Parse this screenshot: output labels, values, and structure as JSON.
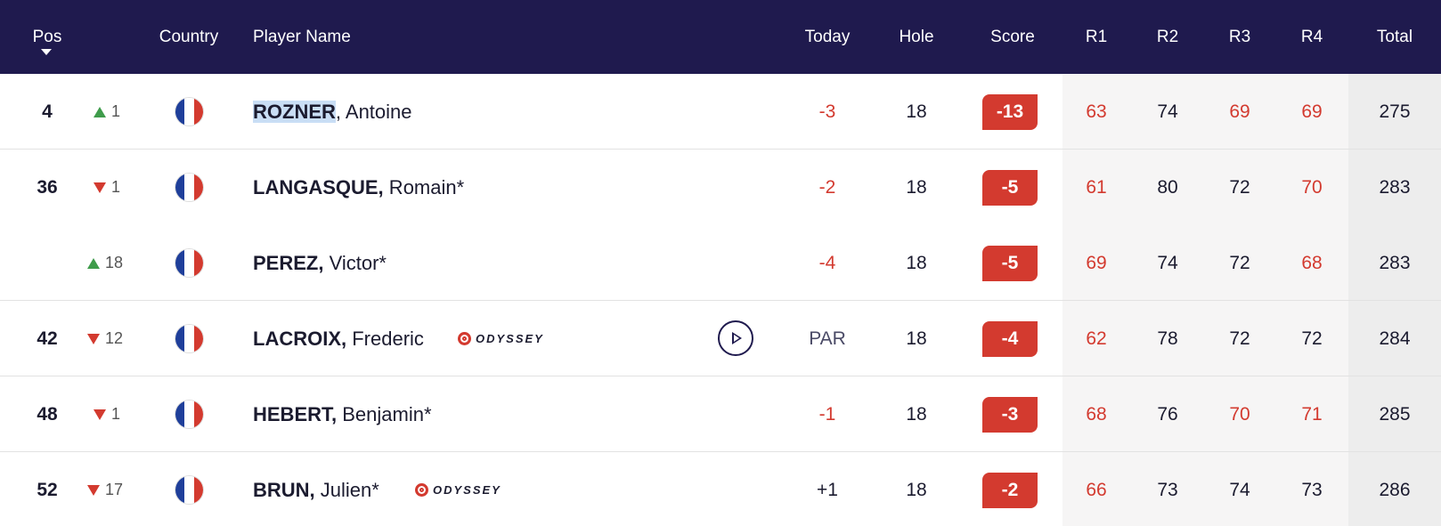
{
  "header": {
    "pos": "Pos",
    "country": "Country",
    "player_name": "Player Name",
    "today": "Today",
    "hole": "Hole",
    "score": "Score",
    "r1": "R1",
    "r2": "R2",
    "r3": "R3",
    "r4": "R4",
    "total": "Total"
  },
  "colors": {
    "header_bg": "#1f1a4e",
    "red": "#d33a2f",
    "green": "#3f9c4b"
  },
  "rows": [
    {
      "pos": "4",
      "move_dir": "up",
      "move": "1",
      "flag": "france",
      "surname": "ROZNER",
      "firstname": ", Antoine",
      "sponsor": "",
      "today": "-3",
      "hole": "18",
      "score": "-13",
      "r1": "63",
      "r2": "74",
      "r3": "69",
      "r4": "69",
      "total": "275"
    },
    {
      "pos": "36",
      "move_dir": "down",
      "move": "1",
      "flag": "france",
      "surname": "LANGASQUE,",
      "firstname": " Romain*",
      "sponsor": "",
      "today": "-2",
      "hole": "18",
      "score": "-5",
      "r1": "61",
      "r2": "80",
      "r3": "72",
      "r4": "70",
      "total": "283"
    },
    {
      "pos": "",
      "move_dir": "up",
      "move": "18",
      "flag": "france",
      "surname": "PEREZ,",
      "firstname": " Victor*",
      "sponsor": "",
      "today": "-4",
      "hole": "18",
      "score": "-5",
      "r1": "69",
      "r2": "74",
      "r3": "72",
      "r4": "68",
      "total": "283"
    },
    {
      "pos": "42",
      "move_dir": "down",
      "move": "12",
      "flag": "france",
      "surname": "LACROIX,",
      "firstname": " Frederic",
      "sponsor": "ODYSSEY",
      "today": "PAR",
      "hole": "18",
      "score": "-4",
      "r1": "62",
      "r2": "78",
      "r3": "72",
      "r4": "72",
      "total": "284"
    },
    {
      "pos": "48",
      "move_dir": "down",
      "move": "1",
      "flag": "france",
      "surname": "HEBERT,",
      "firstname": " Benjamin*",
      "sponsor": "",
      "today": "-1",
      "hole": "18",
      "score": "-3",
      "r1": "68",
      "r2": "76",
      "r3": "70",
      "r4": "71",
      "total": "285"
    },
    {
      "pos": "52",
      "move_dir": "down",
      "move": "17",
      "flag": "france",
      "surname": "BRUN,",
      "firstname": " Julien*",
      "sponsor": "ODYSSEY",
      "today": "+1",
      "hole": "18",
      "score": "-2",
      "r1": "66",
      "r2": "73",
      "r3": "74",
      "r4": "73",
      "total": "286"
    }
  ]
}
